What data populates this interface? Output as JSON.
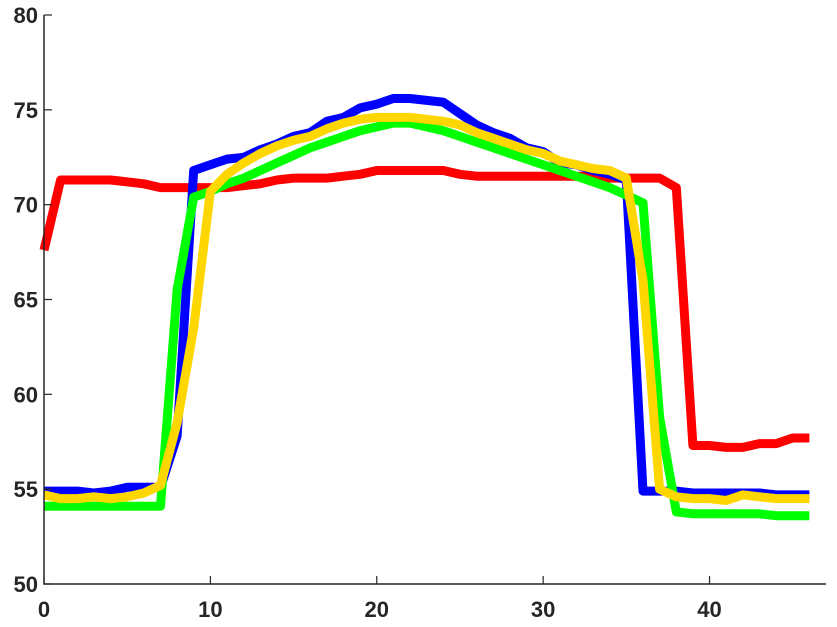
{
  "chart_data": {
    "type": "line",
    "title": "",
    "xlabel": "",
    "ylabel": "",
    "xlim": [
      0,
      47
    ],
    "ylim": [
      50,
      80
    ],
    "x_ticks": [
      0,
      10,
      20,
      30,
      40
    ],
    "y_ticks": [
      50,
      55,
      60,
      65,
      70,
      75,
      80
    ],
    "grid": false,
    "legend": "none",
    "series": [
      {
        "color": "#ff0000",
        "x": [
          0,
          1,
          2,
          3,
          4,
          5,
          6,
          7,
          8,
          9,
          10,
          11,
          12,
          13,
          14,
          15,
          16,
          17,
          18,
          19,
          20,
          21,
          22,
          23,
          24,
          25,
          26,
          27,
          28,
          29,
          30,
          31,
          32,
          33,
          34,
          35,
          36,
          37,
          38,
          39,
          40,
          41,
          42,
          43,
          44,
          45,
          46
        ],
        "y": [
          67.6,
          71.3,
          71.3,
          71.3,
          71.3,
          71.2,
          71.1,
          70.9,
          70.9,
          70.9,
          70.9,
          70.9,
          71.0,
          71.1,
          71.3,
          71.4,
          71.4,
          71.4,
          71.5,
          71.6,
          71.8,
          71.8,
          71.8,
          71.8,
          71.8,
          71.6,
          71.5,
          71.5,
          71.5,
          71.5,
          71.5,
          71.5,
          71.5,
          71.5,
          71.4,
          71.4,
          71.4,
          71.4,
          70.9,
          57.3,
          57.3,
          57.2,
          57.2,
          57.4,
          57.4,
          57.7,
          57.7
        ]
      },
      {
        "color": "#0000ff",
        "x": [
          0,
          1,
          2,
          3,
          4,
          5,
          6,
          7,
          8,
          9,
          10,
          11,
          12,
          13,
          14,
          15,
          16,
          17,
          18,
          19,
          20,
          21,
          22,
          23,
          24,
          25,
          26,
          27,
          28,
          29,
          30,
          31,
          32,
          33,
          34,
          35,
          36,
          37,
          38,
          39,
          40,
          41,
          42,
          43,
          44,
          45,
          46
        ],
        "y": [
          54.9,
          54.9,
          54.9,
          54.8,
          54.9,
          55.1,
          55.1,
          55.1,
          57.8,
          71.8,
          72.1,
          72.4,
          72.5,
          72.9,
          73.2,
          73.6,
          73.8,
          74.4,
          74.6,
          75.1,
          75.3,
          75.6,
          75.6,
          75.5,
          75.4,
          74.8,
          74.2,
          73.8,
          73.5,
          73.0,
          72.8,
          72.2,
          72.1,
          71.8,
          71.6,
          71.3,
          54.9,
          54.9,
          54.9,
          54.8,
          54.8,
          54.8,
          54.8,
          54.8,
          54.7,
          54.7,
          54.7
        ]
      },
      {
        "color": "#00ff00",
        "x": [
          0,
          1,
          2,
          3,
          4,
          5,
          6,
          7,
          8,
          9,
          10,
          11,
          12,
          13,
          14,
          15,
          16,
          17,
          18,
          19,
          20,
          21,
          22,
          23,
          24,
          25,
          26,
          27,
          28,
          29,
          30,
          31,
          32,
          33,
          34,
          35,
          36,
          37,
          38,
          39,
          40,
          41,
          42,
          43,
          44,
          45,
          46
        ],
        "y": [
          54.1,
          54.1,
          54.1,
          54.1,
          54.1,
          54.1,
          54.1,
          54.1,
          65.5,
          70.4,
          70.7,
          71.1,
          71.4,
          71.8,
          72.2,
          72.6,
          73.0,
          73.3,
          73.6,
          73.9,
          74.1,
          74.3,
          74.3,
          74.1,
          73.9,
          73.6,
          73.3,
          73.0,
          72.7,
          72.4,
          72.1,
          71.8,
          71.5,
          71.2,
          70.9,
          70.5,
          70.1,
          58.8,
          53.8,
          53.7,
          53.7,
          53.7,
          53.7,
          53.7,
          53.6,
          53.6,
          53.6
        ]
      },
      {
        "color": "#ffd700",
        "x": [
          0,
          1,
          2,
          3,
          4,
          5,
          6,
          7,
          8,
          9,
          10,
          11,
          12,
          13,
          14,
          15,
          16,
          17,
          18,
          19,
          20,
          21,
          22,
          23,
          24,
          25,
          26,
          27,
          28,
          29,
          30,
          31,
          32,
          33,
          34,
          35,
          36,
          37,
          38,
          39,
          40,
          41,
          42,
          43,
          44,
          45,
          46
        ],
        "y": [
          54.7,
          54.5,
          54.5,
          54.6,
          54.5,
          54.6,
          54.8,
          55.2,
          58.5,
          63.5,
          70.7,
          71.6,
          72.2,
          72.7,
          73.1,
          73.4,
          73.6,
          74.0,
          74.3,
          74.5,
          74.6,
          74.6,
          74.6,
          74.5,
          74.4,
          74.2,
          73.8,
          73.5,
          73.2,
          72.9,
          72.7,
          72.3,
          72.1,
          71.9,
          71.8,
          71.4,
          66.0,
          55.0,
          54.6,
          54.5,
          54.5,
          54.4,
          54.7,
          54.6,
          54.5,
          54.5,
          54.5
        ]
      }
    ]
  }
}
